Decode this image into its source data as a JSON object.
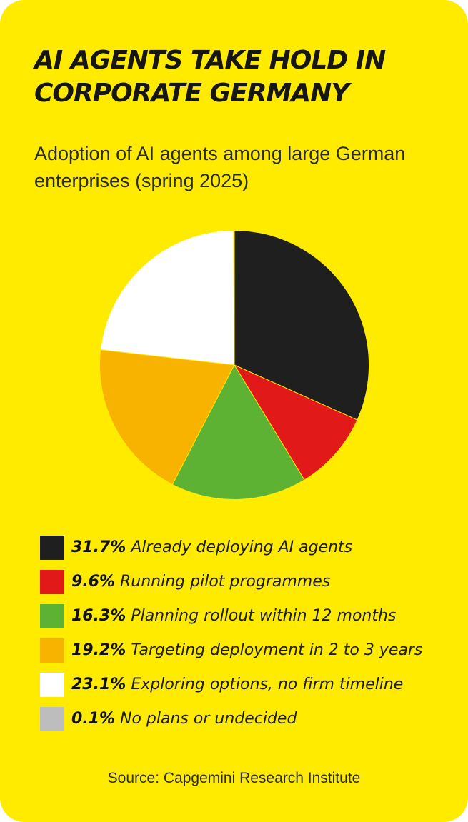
{
  "card": {
    "title": "AI AGENTS TAKE HOLD IN CORPORATE GERMANY",
    "subtitle": "Adoption of AI agents among large German enterprises (spring 2025)",
    "source": "Source: Capgemini Research Institute",
    "background_color": "#FFEB00"
  },
  "chart_data": {
    "type": "pie",
    "title": "Adoption of AI agents among large German enterprises (spring 2025)",
    "unit": "%",
    "start_direction": "12 o'clock",
    "order": "clockwise",
    "legend_placement": "bottom",
    "slices": [
      {
        "label": "Already deploying AI agents",
        "value": 31.7,
        "pct_label": "31.7%",
        "color": "#1F1F1F"
      },
      {
        "label": "Running pilot programmes",
        "value": 9.6,
        "pct_label": "9.6%",
        "color": "#E11919"
      },
      {
        "label": "Planning rollout within 12 months",
        "value": 16.3,
        "pct_label": "16.3%",
        "color": "#5DB233"
      },
      {
        "label": "Targeting deployment in 2 to 3 years",
        "value": 19.2,
        "pct_label": "19.2%",
        "color": "#F8B300"
      },
      {
        "label": "Exploring options, no firm timeline",
        "value": 23.1,
        "pct_label": "23.1%",
        "color": "#FFFFFF"
      },
      {
        "label": "No plans or undecided",
        "value": 0.1,
        "pct_label": "0.1%",
        "color": "#BDBDBD"
      }
    ]
  }
}
